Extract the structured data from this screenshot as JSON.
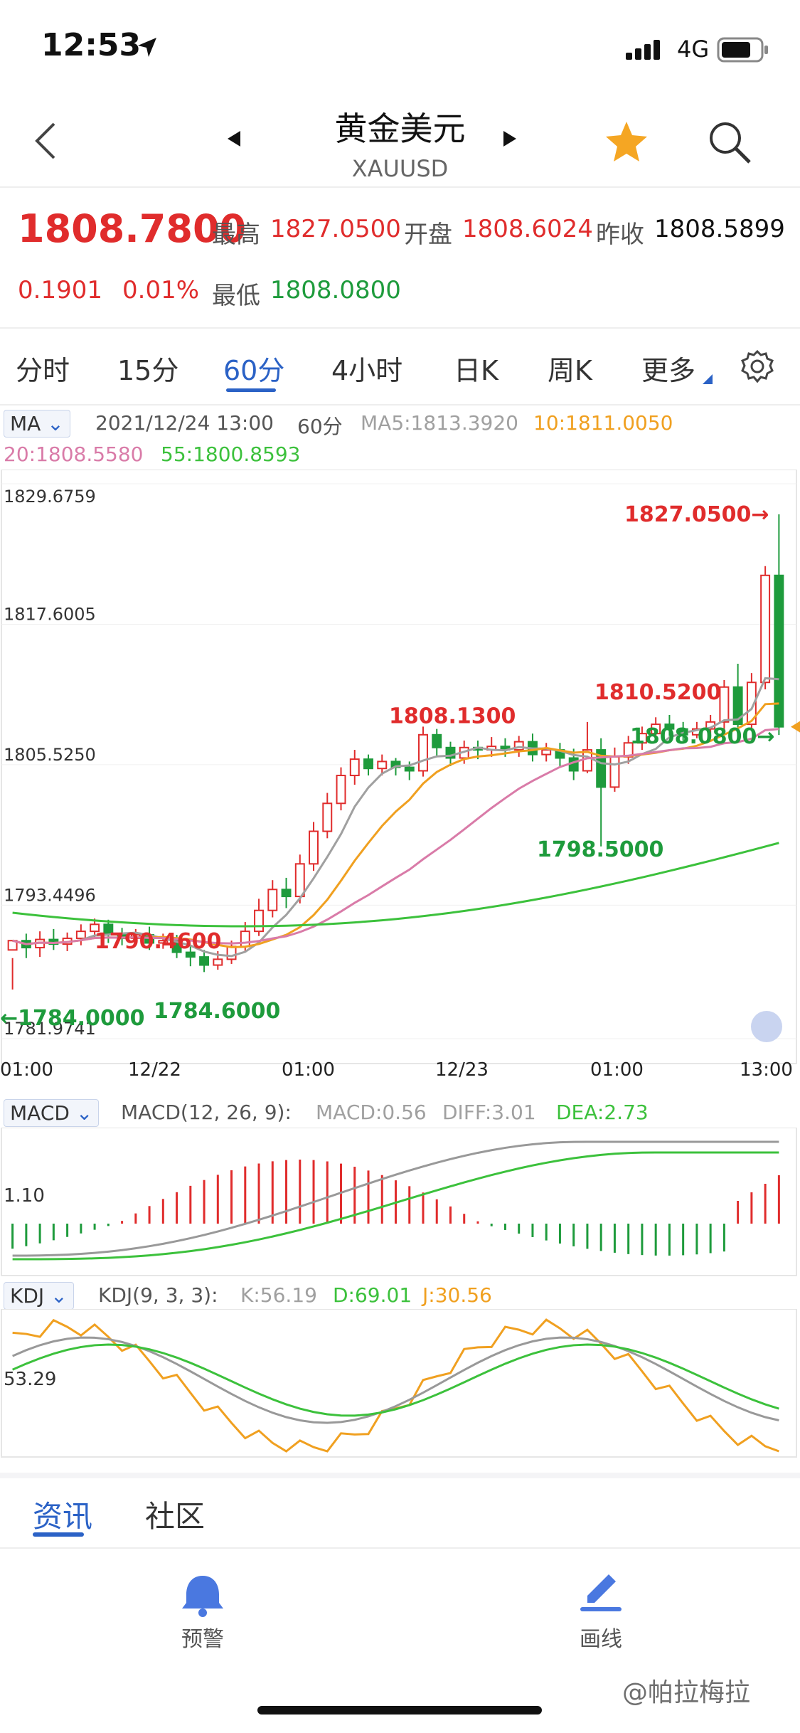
{
  "status": {
    "time": "12:53",
    "network": "4G"
  },
  "nav": {
    "title": "黄金美元",
    "subtitle": "XAUUSD"
  },
  "quote": {
    "price": "1808.7800",
    "high_label": "最高",
    "high": "1827.0500",
    "open_label": "开盘",
    "open": "1808.6024",
    "prev_label": "昨收",
    "prev": "1808.5899",
    "change": "0.1901",
    "change_pct": "0.01%",
    "low_label": "最低",
    "low": "1808.0800"
  },
  "tabs": [
    "分时",
    "15分",
    "60分",
    "4小时",
    "日K",
    "周K",
    "更多"
  ],
  "active_tab": "60分",
  "ma_row": {
    "selector": "MA",
    "datetime": "2021/12/24 13:00",
    "period": "60分",
    "ma5": "MA5:1813.3920",
    "ma10": "10:1811.0050",
    "ma20": "20:1808.5580",
    "ma55": "55:1800.8593"
  },
  "macd_row": {
    "selector": "MACD",
    "params": "MACD(12, 26, 9):",
    "macd": "MACD:0.56",
    "diff": "DIFF:3.01",
    "dea": "DEA:2.73",
    "axis": "1.10"
  },
  "kdj_row": {
    "selector": "KDJ",
    "params": "KDJ(9, 3, 3):",
    "k": "K:56.19",
    "d": "D:69.01",
    "j": "J:30.56",
    "axis": "53.29"
  },
  "colors": {
    "up": "#e02c2c",
    "down": "#1e9b3c",
    "accent": "#2b62c6",
    "ma5": "#a0a0a0",
    "ma10": "#f0a020",
    "ma20": "#d97ba8",
    "ma55": "#3cc13c"
  },
  "chart_data": {
    "type": "candlestick",
    "y_axis_labels": [
      "1829.6759",
      "1817.6005",
      "1805.5250",
      "1793.4496",
      "1781.9741"
    ],
    "ylim": [
      1781.9741,
      1829.6759
    ],
    "x_tick_labels": [
      "01:00",
      "12/22",
      "01:00",
      "12/23",
      "01:00",
      "13:00"
    ],
    "annotations": [
      {
        "text": "1827.0500→",
        "kind": "high"
      },
      {
        "text": "1810.5200",
        "kind": "high"
      },
      {
        "text": "1808.1300",
        "kind": "high"
      },
      {
        "text": "1790.4600",
        "kind": "high"
      },
      {
        "text": "1798.5000",
        "kind": "low"
      },
      {
        "text": "1808.0800→",
        "kind": "low"
      },
      {
        "text": "1784.6000",
        "kind": "low"
      },
      {
        "text": "←1784.0000",
        "kind": "low"
      }
    ],
    "candles": [
      [
        1789.6,
        1790.4,
        1788.9,
        1786.2
      ],
      [
        1790.4,
        1789.8,
        1791.0,
        1788.9
      ],
      [
        1789.8,
        1790.5,
        1791.2,
        1789.0
      ],
      [
        1790.5,
        1790.1,
        1791.4,
        1789.6
      ],
      [
        1790.1,
        1790.6,
        1791.1,
        1789.5
      ],
      [
        1790.6,
        1791.2,
        1791.8,
        1790.0
      ],
      [
        1791.2,
        1791.8,
        1792.3,
        1790.6
      ],
      [
        1791.8,
        1790.9,
        1792.2,
        1790.2
      ],
      [
        1790.9,
        1790.6,
        1791.5,
        1790.0
      ],
      [
        1790.6,
        1790.9,
        1791.4,
        1790.1
      ],
      [
        1790.9,
        1790.2,
        1791.6,
        1789.6
      ],
      [
        1790.2,
        1790.4,
        1791.0,
        1789.7
      ],
      [
        1790.4,
        1789.4,
        1790.9,
        1788.9
      ],
      [
        1789.4,
        1789.0,
        1789.9,
        1788.2
      ],
      [
        1789.0,
        1788.3,
        1789.6,
        1787.7
      ],
      [
        1788.3,
        1788.8,
        1789.5,
        1787.9
      ],
      [
        1788.8,
        1789.9,
        1790.4,
        1788.4
      ],
      [
        1789.9,
        1791.2,
        1792.0,
        1789.4
      ],
      [
        1791.2,
        1793.0,
        1794.0,
        1790.8
      ],
      [
        1793.0,
        1794.8,
        1795.6,
        1792.4
      ],
      [
        1794.8,
        1794.2,
        1795.8,
        1793.2
      ],
      [
        1794.2,
        1797.0,
        1797.8,
        1793.6
      ],
      [
        1797.0,
        1799.8,
        1800.6,
        1796.4
      ],
      [
        1799.8,
        1802.2,
        1803.1,
        1799.2
      ],
      [
        1802.2,
        1804.6,
        1805.3,
        1801.6
      ],
      [
        1804.6,
        1806.0,
        1806.8,
        1803.8
      ],
      [
        1806.0,
        1805.2,
        1806.4,
        1804.6
      ],
      [
        1805.2,
        1805.8,
        1806.4,
        1804.6
      ],
      [
        1805.8,
        1805.3,
        1806.1,
        1804.6
      ],
      [
        1805.3,
        1805.0,
        1805.8,
        1804.2
      ],
      [
        1805.0,
        1808.1,
        1808.8,
        1804.5
      ],
      [
        1808.1,
        1807.0,
        1808.6,
        1806.2
      ],
      [
        1807.0,
        1806.1,
        1807.5,
        1805.4
      ],
      [
        1806.1,
        1807.0,
        1807.6,
        1805.6
      ],
      [
        1807.0,
        1806.8,
        1807.6,
        1806.0
      ],
      [
        1806.8,
        1807.1,
        1807.9,
        1806.2
      ],
      [
        1807.1,
        1806.8,
        1807.8,
        1806.2
      ],
      [
        1806.8,
        1807.5,
        1808.0,
        1806.2
      ],
      [
        1807.5,
        1806.4,
        1808.2,
        1805.8
      ],
      [
        1806.4,
        1806.8,
        1807.4,
        1805.8
      ],
      [
        1806.8,
        1806.1,
        1807.4,
        1805.4
      ],
      [
        1806.1,
        1805.0,
        1806.9,
        1804.2
      ],
      [
        1805.0,
        1806.8,
        1809.2,
        1804.8
      ],
      [
        1806.8,
        1803.6,
        1807.8,
        1798.5
      ],
      [
        1803.6,
        1806.2,
        1807.0,
        1803.2
      ],
      [
        1806.2,
        1807.4,
        1808.0,
        1805.6
      ],
      [
        1807.4,
        1808.2,
        1808.8,
        1806.8
      ],
      [
        1808.2,
        1809.0,
        1809.6,
        1807.4
      ],
      [
        1809.0,
        1808.6,
        1809.8,
        1808.0
      ],
      [
        1808.6,
        1808.1,
        1809.2,
        1807.6
      ],
      [
        1808.1,
        1808.6,
        1809.2,
        1807.8
      ],
      [
        1808.6,
        1809.2,
        1809.8,
        1808.2
      ],
      [
        1809.2,
        1812.2,
        1812.8,
        1808.6
      ],
      [
        1812.2,
        1809.0,
        1814.2,
        1808.4
      ],
      [
        1809.0,
        1812.6,
        1813.4,
        1808.6
      ],
      [
        1812.6,
        1821.8,
        1822.6,
        1812.0
      ],
      [
        1821.8,
        1808.78,
        1827.05,
        1808.08
      ]
    ]
  }
}
